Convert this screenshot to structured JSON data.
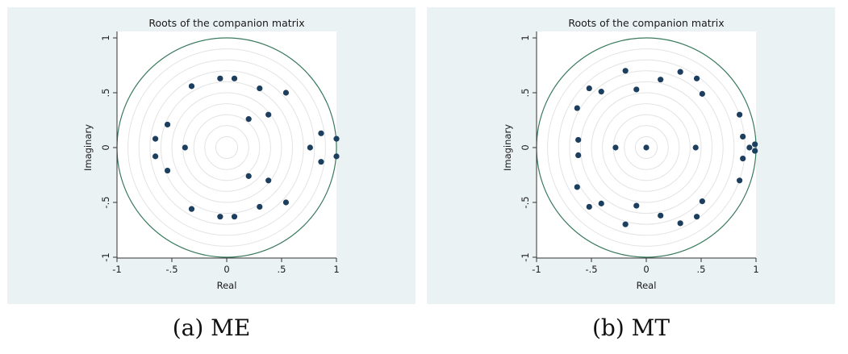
{
  "figure": {
    "captions": [
      "(a) ME",
      "(b) MT"
    ]
  },
  "chart_data": [
    {
      "type": "scatter",
      "title": "Roots of the companion matrix",
      "xlabel": "Real",
      "ylabel": "Imaginary",
      "xlim": [
        -1,
        1
      ],
      "ylim": [
        -1,
        1
      ],
      "xticks": [
        "-1",
        "-.5",
        "0",
        ".5",
        "1"
      ],
      "yticks": [
        "-1",
        "-.5",
        "0",
        ".5",
        "1"
      ],
      "unit_circle": true,
      "circle_color": "#3a7a5d",
      "point_color": "#1c3f5f",
      "panel_bg": "#eaf2f3",
      "grid_rings": "concentric light gray circles",
      "points": [
        {
          "x": -0.06,
          "y": 0.63
        },
        {
          "x": 0.07,
          "y": 0.63
        },
        {
          "x": -0.32,
          "y": 0.56
        },
        {
          "x": 0.3,
          "y": 0.54
        },
        {
          "x": 0.54,
          "y": 0.5
        },
        {
          "x": 0.38,
          "y": 0.3
        },
        {
          "x": 0.2,
          "y": 0.26
        },
        {
          "x": -0.54,
          "y": 0.21
        },
        {
          "x": 0.86,
          "y": 0.13
        },
        {
          "x": -0.65,
          "y": 0.08
        },
        {
          "x": 1.0,
          "y": 0.08
        },
        {
          "x": -0.65,
          "y": -0.08
        },
        {
          "x": 1.0,
          "y": -0.08
        },
        {
          "x": -0.38,
          "y": 0.0
        },
        {
          "x": 0.76,
          "y": 0.0
        },
        {
          "x": 0.86,
          "y": -0.13
        },
        {
          "x": -0.54,
          "y": -0.21
        },
        {
          "x": 0.2,
          "y": -0.26
        },
        {
          "x": 0.38,
          "y": -0.3
        },
        {
          "x": 0.54,
          "y": -0.5
        },
        {
          "x": 0.3,
          "y": -0.54
        },
        {
          "x": -0.32,
          "y": -0.56
        },
        {
          "x": -0.06,
          "y": -0.63
        },
        {
          "x": 0.07,
          "y": -0.63
        }
      ]
    },
    {
      "type": "scatter",
      "title": "Roots of the companion matrix",
      "xlabel": "Real",
      "ylabel": "Imaginary",
      "xlim": [
        -1,
        1
      ],
      "ylim": [
        -1,
        1
      ],
      "xticks": [
        "-1",
        "-.5",
        "0",
        ".5",
        "1"
      ],
      "yticks": [
        "-1",
        "-.5",
        "0",
        ".5",
        "1"
      ],
      "unit_circle": true,
      "circle_color": "#3a7a5d",
      "point_color": "#1c3f5f",
      "panel_bg": "#eaf2f3",
      "grid_rings": "concentric light gray circles",
      "points": [
        {
          "x": -0.19,
          "y": 0.7
        },
        {
          "x": 0.31,
          "y": 0.69
        },
        {
          "x": 0.46,
          "y": 0.63
        },
        {
          "x": 0.13,
          "y": 0.62
        },
        {
          "x": -0.52,
          "y": 0.54
        },
        {
          "x": -0.09,
          "y": 0.53
        },
        {
          "x": -0.41,
          "y": 0.51
        },
        {
          "x": 0.51,
          "y": 0.49
        },
        {
          "x": -0.63,
          "y": 0.36
        },
        {
          "x": 0.85,
          "y": 0.3
        },
        {
          "x": 0.88,
          "y": 0.1
        },
        {
          "x": -0.62,
          "y": 0.07
        },
        {
          "x": 0.99,
          "y": 0.03
        },
        {
          "x": -0.28,
          "y": 0.0
        },
        {
          "x": 0.0,
          "y": 0.0
        },
        {
          "x": 0.45,
          "y": 0.0
        },
        {
          "x": 0.94,
          "y": 0.0
        },
        {
          "x": 0.99,
          "y": -0.03
        },
        {
          "x": -0.62,
          "y": -0.07
        },
        {
          "x": 0.88,
          "y": -0.1
        },
        {
          "x": 0.85,
          "y": -0.3
        },
        {
          "x": -0.63,
          "y": -0.36
        },
        {
          "x": 0.51,
          "y": -0.49
        },
        {
          "x": -0.41,
          "y": -0.51
        },
        {
          "x": -0.52,
          "y": -0.54
        },
        {
          "x": -0.09,
          "y": -0.53
        },
        {
          "x": 0.13,
          "y": -0.62
        },
        {
          "x": 0.46,
          "y": -0.63
        },
        {
          "x": 0.31,
          "y": -0.69
        },
        {
          "x": -0.19,
          "y": -0.7
        }
      ]
    }
  ]
}
